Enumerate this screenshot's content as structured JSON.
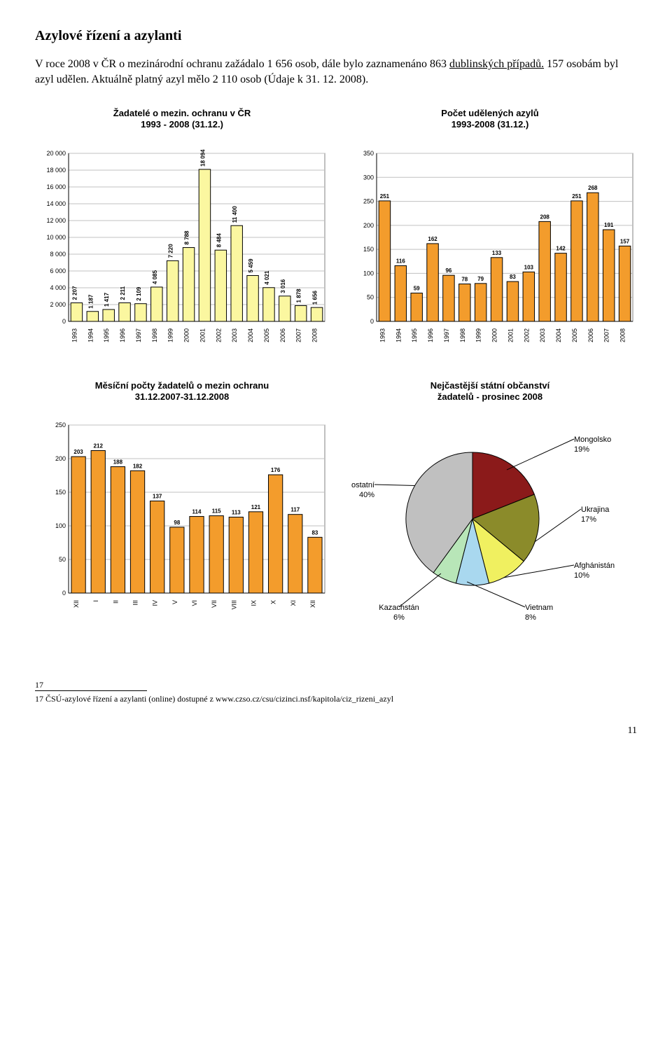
{
  "heading": "Azylové řízení a azylanti",
  "intro": {
    "part1": "V roce 2008 v ČR o mezinárodní ochranu zažádalo 1 656 osob, dále bylo zaznamenáno 863 ",
    "link": "dublinských případů.",
    "part2": " 157 osobám byl azyl udělen. Aktuálně platný azyl mělo 2 110 osob (Údaje k 31. 12. 2008)."
  },
  "chart1": {
    "title_l1": "Žadatelé o mezin. ochranu v ČR",
    "title_l2": "1993 - 2008 (31.12.)",
    "x_labels": [
      "1993",
      "1994",
      "1995",
      "1996",
      "1997",
      "1998",
      "1999",
      "2000",
      "2001",
      "2002",
      "2003",
      "2004",
      "2005",
      "2006",
      "2007",
      "2008"
    ],
    "values": [
      2207,
      1187,
      1417,
      2211,
      2109,
      4085,
      7220,
      8788,
      18094,
      8484,
      11400,
      5459,
      4021,
      3016,
      1878,
      1656
    ],
    "value_labels": [
      "2 207",
      "1 187",
      "1 417",
      "2 211",
      "2 109",
      "4 085",
      "7 220",
      "8 788",
      "18 094",
      "8 484",
      "11 400",
      "5 459",
      "4 021",
      "3 016",
      "1 878",
      "1 656"
    ],
    "y_max": 20000,
    "y_ticks": [
      0,
      2000,
      4000,
      6000,
      8000,
      10000,
      12000,
      14000,
      16000,
      18000,
      20000
    ],
    "y_tick_labels": [
      "0",
      "2 000",
      "4 000",
      "6 000",
      "8 000",
      "10 000",
      "12 000",
      "14 000",
      "16 000",
      "18 000",
      "20 000"
    ],
    "bar_fill": "#fbf7a0",
    "bar_stroke": "#000000",
    "grid_color": "#c0c0c0",
    "bg": "#ffffff"
  },
  "chart2": {
    "title_l1": "Počet udělených azylů",
    "title_l2": "1993-2008 (31.12.)",
    "x_labels": [
      "1993",
      "1994",
      "1995",
      "1996",
      "1997",
      "1998",
      "1999",
      "2000",
      "2001",
      "2002",
      "2003",
      "2004",
      "2005",
      "2006",
      "2007",
      "2008"
    ],
    "values": [
      251,
      116,
      59,
      162,
      96,
      78,
      79,
      133,
      83,
      103,
      208,
      142,
      251,
      268,
      191,
      157
    ],
    "y_max": 350,
    "y_ticks": [
      0,
      50,
      100,
      150,
      200,
      250,
      300,
      350
    ],
    "bar_fill": "#f39c2c",
    "bar_stroke": "#000000",
    "grid_color": "#c0c0c0",
    "bg": "#ffffff"
  },
  "chart3": {
    "title_l1": "Měsíční počty žadatelů o mezin ochranu",
    "title_l2": "31.12.2007-31.12.2008",
    "x_labels": [
      "XII",
      "I",
      "II",
      "III",
      "IV",
      "V",
      "VI",
      "VII",
      "VIII",
      "IX",
      "X",
      "XI",
      "XII"
    ],
    "values": [
      203,
      212,
      188,
      182,
      137,
      98,
      114,
      115,
      113,
      121,
      176,
      117,
      83
    ],
    "y_max": 250,
    "y_ticks": [
      0,
      50,
      100,
      150,
      200,
      250
    ],
    "bar_fill": "#f39c2c",
    "bar_stroke": "#000000",
    "grid_color": "#c0c0c0",
    "bg": "#ffffff"
  },
  "pie": {
    "title_l1": "Nejčastější státní občanství",
    "title_l2": "žadatelů - prosinec 2008",
    "slices": [
      {
        "label": "Mongolsko",
        "pct": "19%",
        "value": 19,
        "color": "#8b1a1a"
      },
      {
        "label": "Ukrajina",
        "pct": "17%",
        "value": 17,
        "color": "#8b8b2a"
      },
      {
        "label": "Afghánistán",
        "pct": "10%",
        "value": 10,
        "color": "#f0f060"
      },
      {
        "label": "Vietnam",
        "pct": "8%",
        "value": 8,
        "color": "#a9d8ef"
      },
      {
        "label": "Kazachstán",
        "pct": "6%",
        "value": 6,
        "color": "#b8e6b8"
      },
      {
        "label": "ostatní",
        "pct": "40%",
        "value": 40,
        "color": "#c0c0c0"
      }
    ]
  },
  "fn_marker_left": "17",
  "footnote": "17 ČSÚ-azylové řízení a azylanti  (online) dostupné z www.czso.cz/csu/cizinci.nsf/kapitola/ciz_rizeni_azyl",
  "page_num": "11"
}
